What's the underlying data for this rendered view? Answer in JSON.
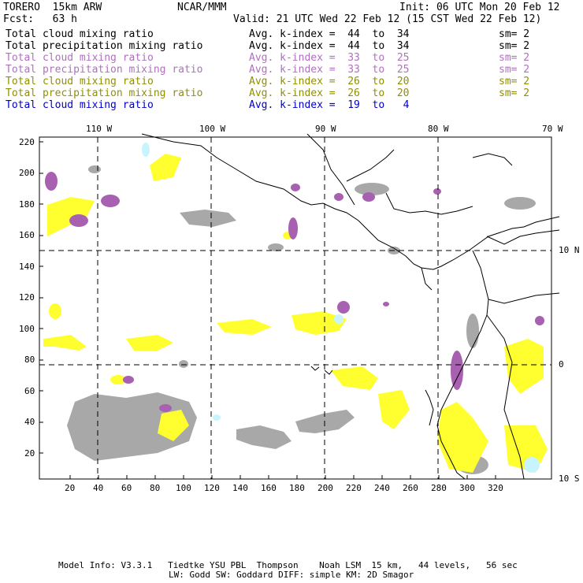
{
  "header": {
    "model": "TORERO  15km ARW",
    "org": "NCAR/MMM",
    "init": "Init: 06 UTC Mon 20 Feb 12",
    "fcst": "Fcst:   63 h",
    "valid": "Valid: 21 UTC Wed 22 Feb 12 (15 CST Wed 22 Feb 12)"
  },
  "legend": [
    {
      "field": "Total cloud mixing ratio",
      "kindex": "Avg. k-index =  44  to  34",
      "sm": "sm= 2",
      "color": "#000000"
    },
    {
      "field": "Total precipitation mixing ratio",
      "kindex": "Avg. k-index =  44  to  34",
      "sm": "sm= 2",
      "color": "#000000"
    },
    {
      "field": "Total cloud mixing ratio",
      "kindex": "Avg. k-index =  33  to  25",
      "sm": "sm= 2",
      "color": "#b070c0"
    },
    {
      "field": "Total precipitation mixing ratio",
      "kindex": "Avg. k-index =  33  to  25",
      "sm": "sm= 2",
      "color": "#b070c0"
    },
    {
      "field": "Total cloud mixing ratio",
      "kindex": "Avg. k-index =  26  to  20",
      "sm": "sm= 2",
      "color": "#909000"
    },
    {
      "field": "Total precipitation mixing ratio",
      "kindex": "Avg. k-index =  26  to  20",
      "sm": "sm= 2",
      "color": "#909000"
    },
    {
      "field": "Total cloud mixing ratio",
      "kindex": "Avg. k-index =  19  to   4",
      "sm": "",
      "color": "#0000c8"
    }
  ],
  "map": {
    "lon_labels": [
      "110 W",
      "100 W",
      "90 W",
      "80 W",
      "70 W"
    ],
    "lat_labels": [
      "10 N",
      "0",
      "10 S"
    ],
    "y_ticks": [
      "220",
      "200",
      "180",
      "160",
      "140",
      "120",
      "100",
      "80",
      "60",
      "40",
      "20"
    ],
    "x_ticks": [
      "20",
      "40",
      "60",
      "80",
      "100",
      "120",
      "140",
      "160",
      "180",
      "200",
      "220",
      "240",
      "260",
      "280",
      "300",
      "320"
    ],
    "colors": {
      "gray": "#a8a8a8",
      "purple": "#a860b0",
      "yellow": "#ffff30",
      "cyan": "#c8f4ff",
      "coast": "#000000"
    }
  },
  "footer": {
    "line1": "Model Info: V3.3.1   Tiedtke YSU PBL  Thompson    Noah LSM  15 km,   44 levels,   56 sec",
    "line2": "LW: Godd SW: Goddard DIFF: simple KM: 2D Smagor"
  }
}
